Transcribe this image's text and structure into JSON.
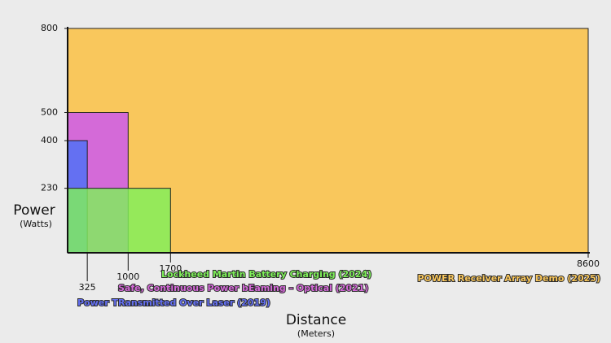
{
  "chart_data": {
    "type": "rectangle",
    "ylabel": "Power",
    "ylabel_units": "(Watts)",
    "xlabel": "Distance",
    "xlabel_units": "(Meters)",
    "xlim": [
      0,
      8600
    ],
    "ylim": [
      0,
      800
    ],
    "xticks": [
      325,
      1000,
      1700,
      8600
    ],
    "yticks": [
      230,
      400,
      500,
      800
    ],
    "series": [
      {
        "name": "POWER Receiver Array Demo (2025)",
        "color": "#f9c75c",
        "x": 8600,
        "y": 800
      },
      {
        "name": "Safe, Continuous Power bEaming – Optical (2021)",
        "color": "#d46ad8",
        "x": 1000,
        "y": 500
      },
      {
        "name": "Power TRansmitted Over Laser (2019)",
        "color": "#6470f2",
        "x": 325,
        "y": 400
      },
      {
        "name": "Lockheed Martin Battery Charging (2024)",
        "color": "#7ff05a",
        "x": 1700,
        "y": 230
      }
    ]
  }
}
